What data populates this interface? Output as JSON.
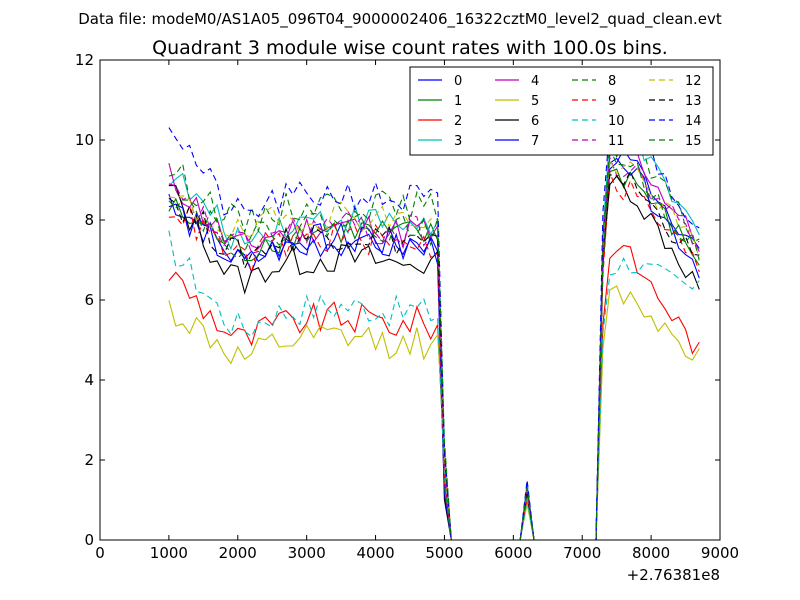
{
  "chart_data": {
    "type": "line",
    "suptitle": "Data file: modeM0/AS1A05_096T04_9000002406_16322cztM0_level2_quad_clean.evt",
    "title": "Quadrant 3 module wise count rates with 100.0s bins.",
    "xlabel": "",
    "ylabel": "",
    "x_offset_label": "+2.76381e8",
    "xlim": [
      0,
      9000
    ],
    "ylim": [
      0,
      12
    ],
    "xticks": [
      0,
      1000,
      2000,
      3000,
      4000,
      5000,
      6000,
      7000,
      8000,
      9000
    ],
    "yticks": [
      0,
      2,
      4,
      6,
      8,
      10,
      12
    ],
    "xtick_labels": [
      "0",
      "1000",
      "2000",
      "3000",
      "4000",
      "5000",
      "6000",
      "7000",
      "8000",
      "9000"
    ],
    "ytick_labels": [
      "0",
      "2",
      "4",
      "6",
      "8",
      "10",
      "12"
    ],
    "legend_position": "top-right",
    "bin_seconds": 100,
    "x_start": 1000,
    "x_step": 100,
    "gap_profile_note": "Each series: 40 bins 1000-4900 (plateau), drop 5000-5100, zero 5100-6100 with spike at 6200 (~1.3), zero 6300-7200, high bins 7300-8700",
    "series": [
      {
        "name": "0",
        "color": "#0000ff",
        "dash": "solid",
        "base": 7.3,
        "start": 8.6,
        "spike": 1.4,
        "peak": 9.8,
        "end": 7.2
      },
      {
        "name": "1",
        "color": "#008000",
        "dash": "solid",
        "base": 7.5,
        "start": 8.3,
        "spike": 1.2,
        "peak": 9.3,
        "end": 7.0
      },
      {
        "name": "2",
        "color": "#ff0000",
        "dash": "solid",
        "base": 5.3,
        "start": 6.7,
        "spike": 1.0,
        "peak": 7.3,
        "end": 4.7
      },
      {
        "name": "3",
        "color": "#00bfbf",
        "dash": "solid",
        "base": 7.8,
        "start": 9.2,
        "spike": 1.4,
        "peak": 10.3,
        "end": 7.6
      },
      {
        "name": "4",
        "color": "#bf00bf",
        "dash": "solid",
        "base": 7.6,
        "start": 9.1,
        "spike": 1.3,
        "peak": 10.0,
        "end": 7.4
      },
      {
        "name": "5",
        "color": "#bfbf00",
        "dash": "solid",
        "base": 4.8,
        "start": 5.8,
        "spike": 0.9,
        "peak": 6.2,
        "end": 4.6
      },
      {
        "name": "6",
        "color": "#000000",
        "dash": "solid",
        "base": 6.8,
        "start": 8.8,
        "spike": 1.3,
        "peak": 9.0,
        "end": 6.3
      },
      {
        "name": "7",
        "color": "#0000ff",
        "dash": "solid",
        "base": 7.2,
        "start": 8.4,
        "spike": 1.3,
        "peak": 9.5,
        "end": 6.8
      },
      {
        "name": "8",
        "color": "#008000",
        "dash": "dashed",
        "base": 8.2,
        "start": 9.3,
        "spike": 1.3,
        "peak": 10.2,
        "end": 7.4
      },
      {
        "name": "9",
        "color": "#ff0000",
        "dash": "dashed",
        "base": 7.3,
        "start": 8.4,
        "spike": 1.2,
        "peak": 9.0,
        "end": 6.8
      },
      {
        "name": "10",
        "color": "#00bfbf",
        "dash": "dashed",
        "base": 5.6,
        "start": 7.4,
        "spike": 1.0,
        "peak": 7.0,
        "end": 6.2
      },
      {
        "name": "11",
        "color": "#bf00bf",
        "dash": "dashed",
        "base": 7.6,
        "start": 8.7,
        "spike": 1.3,
        "peak": 9.5,
        "end": 7.4
      },
      {
        "name": "12",
        "color": "#bfbf00",
        "dash": "dashed",
        "base": 7.9,
        "start": 8.5,
        "spike": 1.3,
        "peak": 9.6,
        "end": 7.2
      },
      {
        "name": "13",
        "color": "#000000",
        "dash": "dashed",
        "base": 7.4,
        "start": 8.6,
        "spike": 1.2,
        "peak": 9.2,
        "end": 6.9
      },
      {
        "name": "14",
        "color": "#0000ff",
        "dash": "dashed",
        "base": 8.4,
        "start": 10.5,
        "spike": 1.5,
        "peak": 10.6,
        "end": 7.8
      },
      {
        "name": "15",
        "color": "#008000",
        "dash": "dashed",
        "base": 7.7,
        "start": 8.8,
        "spike": 1.3,
        "peak": 9.6,
        "end": 7.2
      }
    ]
  }
}
